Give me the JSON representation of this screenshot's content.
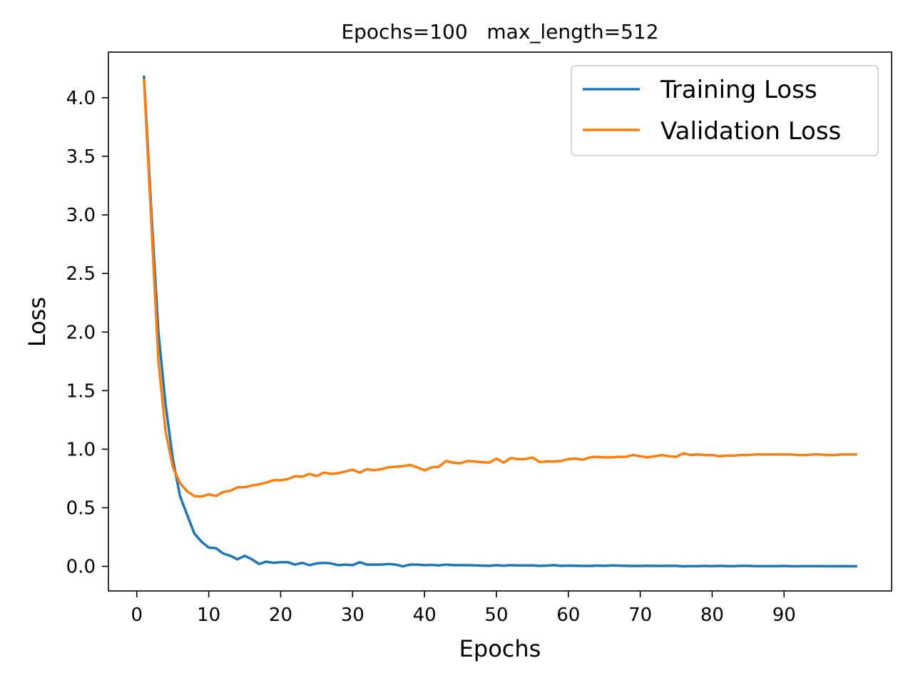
{
  "chart_data": {
    "type": "line",
    "title": "Epochs=100   max_length=512",
    "xlabel": "Epochs",
    "ylabel": "Loss",
    "xlim": [
      -3.95,
      104.95
    ],
    "ylim": [
      -0.21,
      4.39
    ],
    "xticks": [
      0,
      10,
      20,
      30,
      40,
      50,
      60,
      70,
      80,
      90
    ],
    "xtick_labels": [
      "0",
      "10",
      "20",
      "30",
      "40",
      "50",
      "60",
      "70",
      "80",
      "90"
    ],
    "yticks": [
      0.0,
      0.5,
      1.0,
      1.5,
      2.0,
      2.5,
      3.0,
      3.5,
      4.0
    ],
    "ytick_labels": [
      "0.0",
      "0.5",
      "1.0",
      "1.5",
      "2.0",
      "2.5",
      "3.0",
      "3.5",
      "4.0"
    ],
    "grid": false,
    "legend_position": "top-right",
    "x": [
      1,
      2,
      3,
      4,
      5,
      6,
      7,
      8,
      9,
      10,
      11,
      12,
      13,
      14,
      15,
      16,
      17,
      18,
      19,
      20,
      21,
      22,
      23,
      24,
      25,
      26,
      27,
      28,
      29,
      30,
      31,
      32,
      33,
      34,
      35,
      36,
      37,
      38,
      39,
      40,
      41,
      42,
      43,
      44,
      45,
      46,
      47,
      48,
      49,
      50,
      51,
      52,
      53,
      54,
      55,
      56,
      57,
      58,
      59,
      60,
      61,
      62,
      63,
      64,
      65,
      66,
      67,
      68,
      69,
      70,
      71,
      72,
      73,
      74,
      75,
      76,
      77,
      78,
      79,
      80,
      81,
      82,
      83,
      84,
      85,
      86,
      87,
      88,
      89,
      90,
      91,
      92,
      93,
      94,
      95,
      96,
      97,
      98,
      99,
      100
    ],
    "series": [
      {
        "name": "Training Loss",
        "color": "#1f77b4",
        "values": [
          4.18,
          3.05,
          2.0,
          1.38,
          0.92,
          0.6,
          0.44,
          0.28,
          0.21,
          0.16,
          0.155,
          0.11,
          0.09,
          0.06,
          0.09,
          0.06,
          0.02,
          0.04,
          0.03,
          0.035,
          0.035,
          0.015,
          0.03,
          0.01,
          0.025,
          0.03,
          0.025,
          0.01,
          0.015,
          0.01,
          0.035,
          0.015,
          0.015,
          0.015,
          0.02,
          0.015,
          0.0,
          0.015,
          0.015,
          0.01,
          0.012,
          0.008,
          0.015,
          0.01,
          0.01,
          0.01,
          0.008,
          0.006,
          0.004,
          0.01,
          0.005,
          0.01,
          0.008,
          0.008,
          0.008,
          0.004,
          0.006,
          0.01,
          0.004,
          0.006,
          0.005,
          0.004,
          0.003,
          0.006,
          0.004,
          0.008,
          0.006,
          0.004,
          0.003,
          0.003,
          0.005,
          0.004,
          0.003,
          0.005,
          0.004,
          0.0,
          0.002,
          0.002,
          0.003,
          0.002,
          0.004,
          0.002,
          0.002,
          0.004,
          0.004,
          0.002,
          0.002,
          0.002,
          0.002,
          0.003,
          0.001,
          0.001,
          0.002,
          0.002,
          0.002,
          0.001,
          0.001,
          0.002,
          0.001,
          0.001
        ]
      },
      {
        "name": "Validation Loss",
        "color": "#ff7f0e",
        "values": [
          4.15,
          2.95,
          1.75,
          1.15,
          0.85,
          0.71,
          0.64,
          0.6,
          0.595,
          0.615,
          0.6,
          0.635,
          0.645,
          0.675,
          0.675,
          0.69,
          0.7,
          0.715,
          0.735,
          0.735,
          0.745,
          0.77,
          0.765,
          0.79,
          0.77,
          0.8,
          0.79,
          0.795,
          0.81,
          0.825,
          0.8,
          0.83,
          0.82,
          0.83,
          0.845,
          0.85,
          0.855,
          0.865,
          0.845,
          0.82,
          0.845,
          0.85,
          0.9,
          0.885,
          0.88,
          0.9,
          0.895,
          0.89,
          0.885,
          0.92,
          0.885,
          0.925,
          0.915,
          0.915,
          0.93,
          0.89,
          0.895,
          0.895,
          0.9,
          0.915,
          0.92,
          0.91,
          0.93,
          0.935,
          0.93,
          0.93,
          0.935,
          0.935,
          0.95,
          0.94,
          0.93,
          0.94,
          0.95,
          0.94,
          0.935,
          0.965,
          0.95,
          0.955,
          0.95,
          0.95,
          0.94,
          0.945,
          0.945,
          0.95,
          0.95,
          0.955,
          0.955,
          0.955,
          0.955,
          0.955,
          0.955,
          0.95,
          0.95,
          0.955,
          0.955,
          0.95,
          0.95,
          0.955,
          0.955,
          0.955
        ]
      }
    ]
  }
}
